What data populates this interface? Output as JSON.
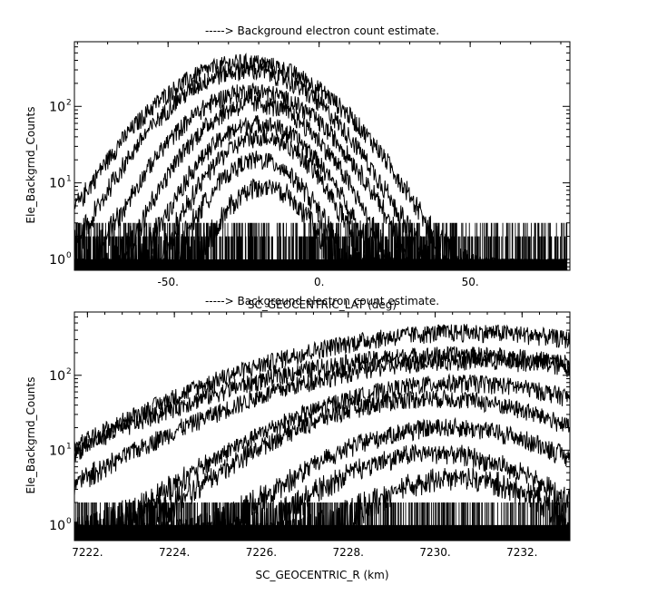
{
  "chart_data": [
    {
      "type": "line",
      "title": "-----> Background electron count estimate.",
      "xlabel": "SC_GEOCENTRIC_LAT (deg)",
      "ylabel": "Ele_Backgrnd_Counts",
      "xlim": [
        -81,
        83
      ],
      "ylim": [
        0.72,
        700
      ],
      "yscale": "log",
      "x_ticks": [
        -50,
        0,
        50
      ],
      "x_tick_labels": [
        "-50.",
        "0.",
        "50."
      ],
      "y_ticks": [
        1,
        10,
        100
      ],
      "y_tick_labels": [
        {
          "base": "10",
          "exp": "0"
        },
        {
          "base": "10",
          "exp": "1"
        },
        {
          "base": "10",
          "exp": "2"
        }
      ],
      "data_extent": [
        -81,
        82
      ],
      "noise_floor": [
        1,
        3
      ],
      "series": [
        {
          "peak_x": -24,
          "peak_y": 380,
          "width": 19
        },
        {
          "peak_x": -24,
          "peak_y": 300,
          "width": 17
        },
        {
          "peak_x": -22,
          "peak_y": 160,
          "width": 16
        },
        {
          "peak_x": -21,
          "peak_y": 110,
          "width": 14
        },
        {
          "peak_x": -20,
          "peak_y": 60,
          "width": 13
        },
        {
          "peak_x": -19,
          "peak_y": 40,
          "width": 12
        },
        {
          "peak_x": -20,
          "peak_y": 20,
          "width": 11
        },
        {
          "peak_x": -18,
          "peak_y": 9,
          "width": 10
        }
      ]
    },
    {
      "type": "line",
      "title": "-----> Background electron count estimate.",
      "xlabel": "SC_GEOCENTRIC_R (km)",
      "ylabel": "Ele_Backgrnd_Counts",
      "xlim": [
        7221.7,
        7233.1
      ],
      "ylim": [
        0.62,
        700
      ],
      "yscale": "log",
      "x_ticks": [
        7222,
        7224,
        7226,
        7228,
        7230,
        7232
      ],
      "x_tick_labels": [
        "7222.",
        "7224.",
        "7226.",
        "7228.",
        "7230.",
        "7232."
      ],
      "y_ticks": [
        1,
        10,
        100
      ],
      "y_tick_labels": [
        {
          "base": "10",
          "exp": "0"
        },
        {
          "base": "10",
          "exp": "1"
        },
        {
          "base": "10",
          "exp": "2"
        }
      ],
      "data_extent": [
        7221.7,
        7233.1
      ],
      "noise_floor": [
        1,
        2
      ],
      "series": [
        {
          "peak_x": 7230.8,
          "peak_y": 380,
          "width": 3.4
        },
        {
          "peak_x": 7230.5,
          "peak_y": 190,
          "width": 3.6
        },
        {
          "peak_x": 7230.9,
          "peak_y": 160,
          "width": 3.3
        },
        {
          "peak_x": 7230.6,
          "peak_y": 80,
          "width": 2.6
        },
        {
          "peak_x": 7230.0,
          "peak_y": 50,
          "width": 2.3
        },
        {
          "peak_x": 7230.3,
          "peak_y": 20,
          "width": 2.0
        },
        {
          "peak_x": 7230.0,
          "peak_y": 9,
          "width": 1.7
        },
        {
          "peak_x": 7230.5,
          "peak_y": 4,
          "width": 1.5
        }
      ]
    }
  ]
}
